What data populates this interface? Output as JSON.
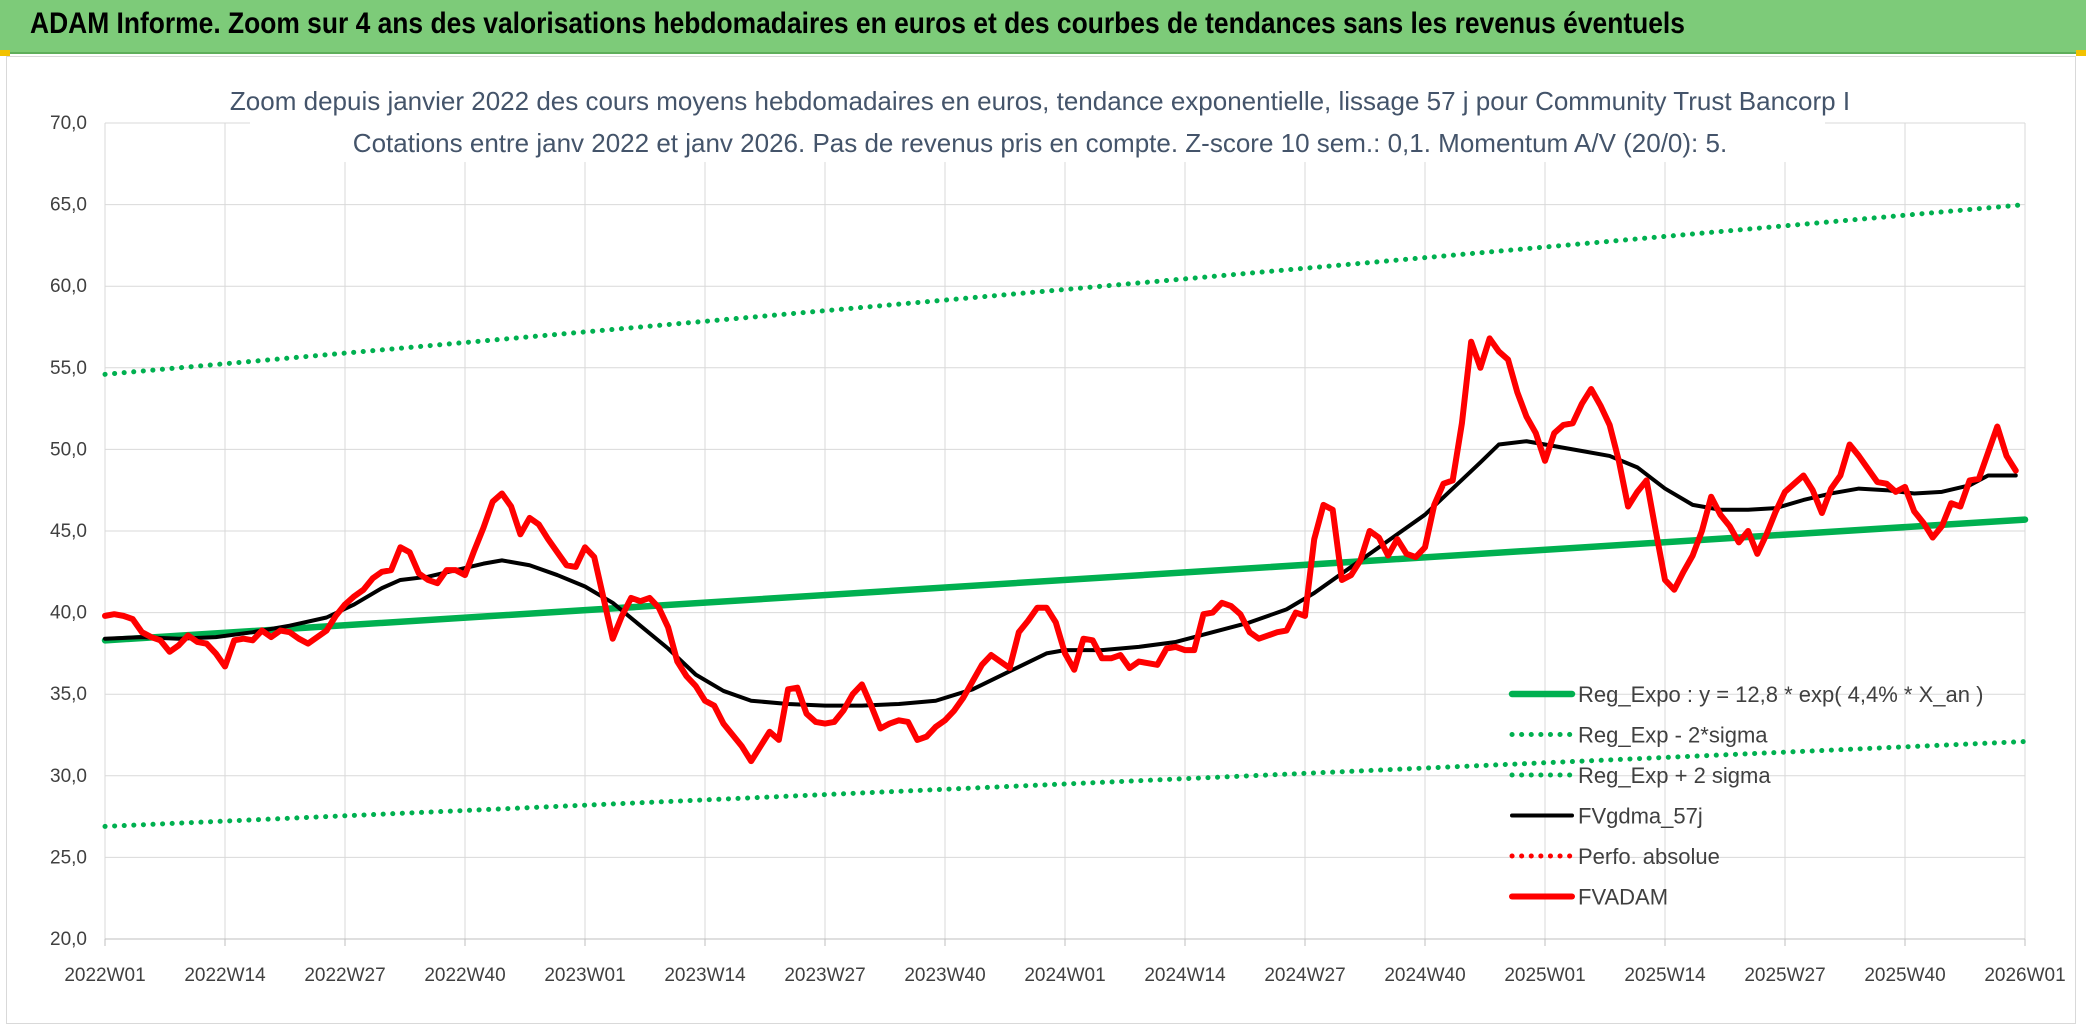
{
  "header": {
    "title": "ADAM Informe. Zoom sur 4 ans des valorisations hebdomadaires en euros et des courbes de tendances sans les revenus éventuels"
  },
  "chart_data": {
    "type": "line",
    "title_line1": "Zoom depuis janvier 2022 des cours moyens hebdomadaires en euros, tendance exponentielle, lissage 57 j pour Community Trust Bancorp I",
    "title_line2": "Cotations entre janv 2022 et janv 2026. Pas de revenus pris en compte. Z-score 10 sem.: 0,1. Momentum A/V (20/0): 5.",
    "ylim": [
      20,
      70
    ],
    "y_ticks": [
      "20,0",
      "25,0",
      "30,0",
      "35,0",
      "40,0",
      "45,0",
      "50,0",
      "55,0",
      "60,0",
      "65,0",
      "70,0"
    ],
    "x_range_weeks": [
      0,
      208
    ],
    "x_ticks": [
      {
        "label": "2022W01",
        "week": 0
      },
      {
        "label": "2022W14",
        "week": 13
      },
      {
        "label": "2022W27",
        "week": 26
      },
      {
        "label": "2022W40",
        "week": 39
      },
      {
        "label": "2023W01",
        "week": 52
      },
      {
        "label": "2023W14",
        "week": 65
      },
      {
        "label": "2023W27",
        "week": 78
      },
      {
        "label": "2023W40",
        "week": 91
      },
      {
        "label": "2024W01",
        "week": 104
      },
      {
        "label": "2024W14",
        "week": 117
      },
      {
        "label": "2024W27",
        "week": 130
      },
      {
        "label": "2024W40",
        "week": 143
      },
      {
        "label": "2025W01",
        "week": 156
      },
      {
        "label": "2025W14",
        "week": 169
      },
      {
        "label": "2025W27",
        "week": 182
      },
      {
        "label": "2025W40",
        "week": 195
      },
      {
        "label": "2026W01",
        "week": 208
      }
    ],
    "grid": true,
    "legend_position": "bottom-right",
    "colors": {
      "trend": "#00b050",
      "smooth": "#000000",
      "fvadam": "#ff0000",
      "perfo": "#ff0000"
    },
    "series": [
      {
        "name": "Reg_Expo : y = 12,8 * exp( 4,4% *  X_an )",
        "style": "solid-thick",
        "color": "#00b050",
        "points": [
          [
            0,
            38.3
          ],
          [
            208,
            45.7
          ]
        ]
      },
      {
        "name": "Reg_Exp - 2*sigma",
        "style": "dotted",
        "color": "#00b050",
        "points": [
          [
            0,
            26.9
          ],
          [
            208,
            32.1
          ]
        ]
      },
      {
        "name": "Reg_Exp + 2 sigma",
        "style": "dotted",
        "color": "#00b050",
        "points": [
          [
            0,
            54.6
          ],
          [
            208,
            65.0
          ]
        ]
      },
      {
        "name": "FVgdma_57j",
        "style": "solid",
        "color": "#000000",
        "points": [
          [
            0,
            38.4
          ],
          [
            4,
            38.5
          ],
          [
            8,
            38.4
          ],
          [
            12,
            38.5
          ],
          [
            16,
            38.8
          ],
          [
            20,
            39.2
          ],
          [
            24,
            39.7
          ],
          [
            27,
            40.5
          ],
          [
            30,
            41.5
          ],
          [
            32,
            42.0
          ],
          [
            35,
            42.2
          ],
          [
            38,
            42.6
          ],
          [
            41,
            43.0
          ],
          [
            43,
            43.2
          ],
          [
            46,
            42.9
          ],
          [
            49,
            42.3
          ],
          [
            52,
            41.6
          ],
          [
            55,
            40.6
          ],
          [
            58,
            39.2
          ],
          [
            61,
            37.8
          ],
          [
            64,
            36.2
          ],
          [
            67,
            35.2
          ],
          [
            70,
            34.6
          ],
          [
            74,
            34.4
          ],
          [
            78,
            34.3
          ],
          [
            82,
            34.3
          ],
          [
            86,
            34.4
          ],
          [
            90,
            34.6
          ],
          [
            94,
            35.3
          ],
          [
            98,
            36.4
          ],
          [
            102,
            37.5
          ],
          [
            104,
            37.7
          ],
          [
            108,
            37.7
          ],
          [
            112,
            37.9
          ],
          [
            116,
            38.2
          ],
          [
            120,
            38.8
          ],
          [
            124,
            39.4
          ],
          [
            128,
            40.2
          ],
          [
            131,
            41.2
          ],
          [
            134,
            42.4
          ],
          [
            137,
            43.6
          ],
          [
            140,
            44.8
          ],
          [
            143,
            46.0
          ],
          [
            146,
            47.6
          ],
          [
            149,
            49.2
          ],
          [
            151,
            50.3
          ],
          [
            154,
            50.5
          ],
          [
            157,
            50.2
          ],
          [
            160,
            49.9
          ],
          [
            163,
            49.6
          ],
          [
            166,
            48.9
          ],
          [
            169,
            47.6
          ],
          [
            172,
            46.6
          ],
          [
            175,
            46.3
          ],
          [
            178,
            46.3
          ],
          [
            181,
            46.4
          ],
          [
            184,
            46.9
          ],
          [
            187,
            47.3
          ],
          [
            190,
            47.6
          ],
          [
            193,
            47.5
          ],
          [
            196,
            47.3
          ],
          [
            199,
            47.4
          ],
          [
            202,
            47.8
          ],
          [
            204,
            48.4
          ],
          [
            207,
            48.4
          ]
        ]
      },
      {
        "name": "Perfo. absolue",
        "style": "dotted",
        "color": "#ff0000",
        "points": []
      },
      {
        "name": "FVADAM",
        "style": "solid-thick",
        "color": "#ff0000",
        "points": [
          [
            0,
            39.8
          ],
          [
            1,
            39.9
          ],
          [
            2,
            39.8
          ],
          [
            3,
            39.6
          ],
          [
            4,
            38.8
          ],
          [
            5,
            38.5
          ],
          [
            6,
            38.3
          ],
          [
            7,
            37.6
          ],
          [
            8,
            38.0
          ],
          [
            9,
            38.6
          ],
          [
            10,
            38.2
          ],
          [
            11,
            38.1
          ],
          [
            12,
            37.5
          ],
          [
            13,
            36.7
          ],
          [
            14,
            38.3
          ],
          [
            15,
            38.4
          ],
          [
            16,
            38.3
          ],
          [
            17,
            38.9
          ],
          [
            18,
            38.5
          ],
          [
            19,
            38.9
          ],
          [
            20,
            38.8
          ],
          [
            21,
            38.4
          ],
          [
            22,
            38.1
          ],
          [
            23,
            38.5
          ],
          [
            24,
            38.9
          ],
          [
            25,
            39.8
          ],
          [
            26,
            40.5
          ],
          [
            27,
            41.0
          ],
          [
            28,
            41.4
          ],
          [
            29,
            42.1
          ],
          [
            30,
            42.5
          ],
          [
            31,
            42.6
          ],
          [
            32,
            44.0
          ],
          [
            33,
            43.7
          ],
          [
            34,
            42.4
          ],
          [
            35,
            42.0
          ],
          [
            36,
            41.8
          ],
          [
            37,
            42.6
          ],
          [
            38,
            42.6
          ],
          [
            39,
            42.3
          ],
          [
            40,
            43.8
          ],
          [
            41,
            45.2
          ],
          [
            42,
            46.8
          ],
          [
            43,
            47.3
          ],
          [
            44,
            46.5
          ],
          [
            45,
            44.8
          ],
          [
            46,
            45.8
          ],
          [
            47,
            45.4
          ],
          [
            48,
            44.5
          ],
          [
            49,
            43.7
          ],
          [
            50,
            42.9
          ],
          [
            51,
            42.8
          ],
          [
            52,
            44.0
          ],
          [
            53,
            43.4
          ],
          [
            54,
            40.9
          ],
          [
            55,
            38.4
          ],
          [
            56,
            39.8
          ],
          [
            57,
            40.9
          ],
          [
            58,
            40.7
          ],
          [
            59,
            40.9
          ],
          [
            60,
            40.3
          ],
          [
            61,
            39.1
          ],
          [
            62,
            37.0
          ],
          [
            63,
            36.1
          ],
          [
            64,
            35.5
          ],
          [
            65,
            34.6
          ],
          [
            66,
            34.3
          ],
          [
            67,
            33.2
          ],
          [
            68,
            32.5
          ],
          [
            69,
            31.8
          ],
          [
            70,
            30.9
          ],
          [
            71,
            31.8
          ],
          [
            72,
            32.7
          ],
          [
            73,
            32.2
          ],
          [
            74,
            35.3
          ],
          [
            75,
            35.4
          ],
          [
            76,
            33.8
          ],
          [
            77,
            33.3
          ],
          [
            78,
            33.2
          ],
          [
            79,
            33.3
          ],
          [
            80,
            34.0
          ],
          [
            81,
            35.0
          ],
          [
            82,
            35.6
          ],
          [
            83,
            34.3
          ],
          [
            84,
            32.9
          ],
          [
            85,
            33.2
          ],
          [
            86,
            33.4
          ],
          [
            87,
            33.3
          ],
          [
            88,
            32.2
          ],
          [
            89,
            32.4
          ],
          [
            90,
            33.0
          ],
          [
            91,
            33.4
          ],
          [
            92,
            34.0
          ],
          [
            93,
            34.8
          ],
          [
            94,
            35.8
          ],
          [
            95,
            36.8
          ],
          [
            96,
            37.4
          ],
          [
            97,
            37.0
          ],
          [
            98,
            36.6
          ],
          [
            99,
            38.8
          ],
          [
            100,
            39.5
          ],
          [
            101,
            40.3
          ],
          [
            102,
            40.3
          ],
          [
            103,
            39.4
          ],
          [
            104,
            37.5
          ],
          [
            105,
            36.5
          ],
          [
            106,
            38.4
          ],
          [
            107,
            38.3
          ],
          [
            108,
            37.2
          ],
          [
            109,
            37.2
          ],
          [
            110,
            37.4
          ],
          [
            111,
            36.6
          ],
          [
            112,
            37.0
          ],
          [
            113,
            36.9
          ],
          [
            114,
            36.8
          ],
          [
            115,
            37.8
          ],
          [
            116,
            37.9
          ],
          [
            117,
            37.7
          ],
          [
            118,
            37.7
          ],
          [
            119,
            39.9
          ],
          [
            120,
            40.0
          ],
          [
            121,
            40.6
          ],
          [
            122,
            40.4
          ],
          [
            123,
            39.9
          ],
          [
            124,
            38.8
          ],
          [
            125,
            38.4
          ],
          [
            126,
            38.6
          ],
          [
            127,
            38.8
          ],
          [
            128,
            38.9
          ],
          [
            129,
            40.0
          ],
          [
            130,
            39.8
          ],
          [
            131,
            44.5
          ],
          [
            132,
            46.6
          ],
          [
            133,
            46.3
          ],
          [
            134,
            42.0
          ],
          [
            135,
            42.3
          ],
          [
            136,
            43.2
          ],
          [
            137,
            45.0
          ],
          [
            138,
            44.6
          ],
          [
            139,
            43.5
          ],
          [
            140,
            44.5
          ],
          [
            141,
            43.6
          ],
          [
            142,
            43.4
          ],
          [
            143,
            44.0
          ],
          [
            144,
            46.6
          ],
          [
            145,
            47.9
          ],
          [
            146,
            48.1
          ],
          [
            147,
            51.6
          ],
          [
            148,
            56.6
          ],
          [
            149,
            55.0
          ],
          [
            150,
            56.8
          ],
          [
            151,
            56.0
          ],
          [
            152,
            55.5
          ],
          [
            153,
            53.5
          ],
          [
            154,
            52.0
          ],
          [
            155,
            51.0
          ],
          [
            156,
            49.3
          ],
          [
            157,
            51.0
          ],
          [
            158,
            51.5
          ],
          [
            159,
            51.6
          ],
          [
            160,
            52.8
          ],
          [
            161,
            53.7
          ],
          [
            162,
            52.7
          ],
          [
            163,
            51.5
          ],
          [
            164,
            49.3
          ],
          [
            165,
            46.5
          ],
          [
            166,
            47.4
          ],
          [
            167,
            48.1
          ],
          [
            168,
            45.0
          ],
          [
            169,
            42.0
          ],
          [
            170,
            41.4
          ],
          [
            171,
            42.5
          ],
          [
            172,
            43.5
          ],
          [
            173,
            45.0
          ],
          [
            174,
            47.1
          ],
          [
            175,
            46.0
          ],
          [
            176,
            45.3
          ],
          [
            177,
            44.3
          ],
          [
            178,
            45.0
          ],
          [
            179,
            43.6
          ],
          [
            180,
            44.8
          ],
          [
            181,
            46.2
          ],
          [
            182,
            47.4
          ],
          [
            183,
            47.9
          ],
          [
            184,
            48.4
          ],
          [
            185,
            47.5
          ],
          [
            186,
            46.1
          ],
          [
            187,
            47.6
          ],
          [
            188,
            48.4
          ],
          [
            189,
            50.3
          ],
          [
            190,
            49.6
          ],
          [
            191,
            48.8
          ],
          [
            192,
            48.0
          ],
          [
            193,
            47.9
          ],
          [
            194,
            47.4
          ],
          [
            195,
            47.7
          ],
          [
            196,
            46.2
          ],
          [
            197,
            45.5
          ],
          [
            198,
            44.6
          ],
          [
            199,
            45.3
          ],
          [
            200,
            46.7
          ],
          [
            201,
            46.5
          ],
          [
            202,
            48.1
          ],
          [
            203,
            48.2
          ],
          [
            204,
            49.8
          ],
          [
            205,
            51.4
          ],
          [
            206,
            49.6
          ],
          [
            207,
            48.7
          ]
        ]
      }
    ]
  }
}
